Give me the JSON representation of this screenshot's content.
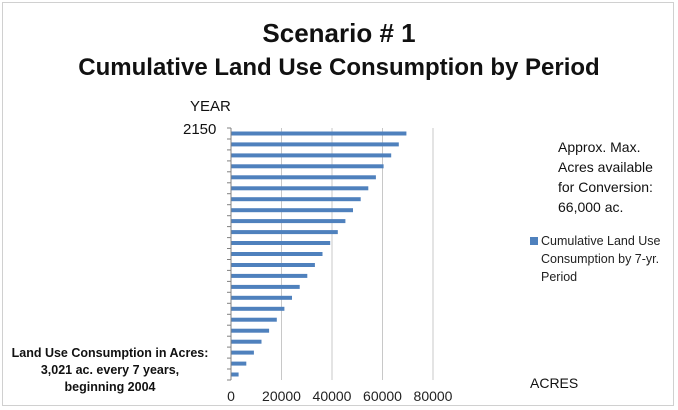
{
  "chart_data": {
    "type": "bar",
    "orientation": "horizontal",
    "title": "Scenario # 1",
    "subtitle": "Cumulative Land Use Consumption by Period",
    "ylabel": "YEAR",
    "xlabel": "ACRES",
    "y_top_tick": "2150",
    "xlim": [
      0,
      80000
    ],
    "x_ticks": [
      "0",
      "20000",
      "40000",
      "60000",
      "80000"
    ],
    "grid": "vertical",
    "legend_position": "right",
    "series": [
      {
        "name": "Cumulative Land Use Consumption by 7-yr. Period",
        "color": "#4f81bd",
        "values": [
          3021,
          6042,
          9063,
          12084,
          15105,
          18126,
          21147,
          24168,
          27189,
          30210,
          33231,
          36252,
          39273,
          42294,
          45315,
          48336,
          51357,
          54378,
          57399,
          60420,
          63441,
          66462,
          69483
        ]
      }
    ],
    "annotations": {
      "note": "Approx. Max. Acres available for Conversion: 66,000 ac.",
      "footnote": [
        "Land Use Consumption in Acres:",
        "3,021 ac. every 7 years,",
        "beginning 2004"
      ]
    }
  }
}
